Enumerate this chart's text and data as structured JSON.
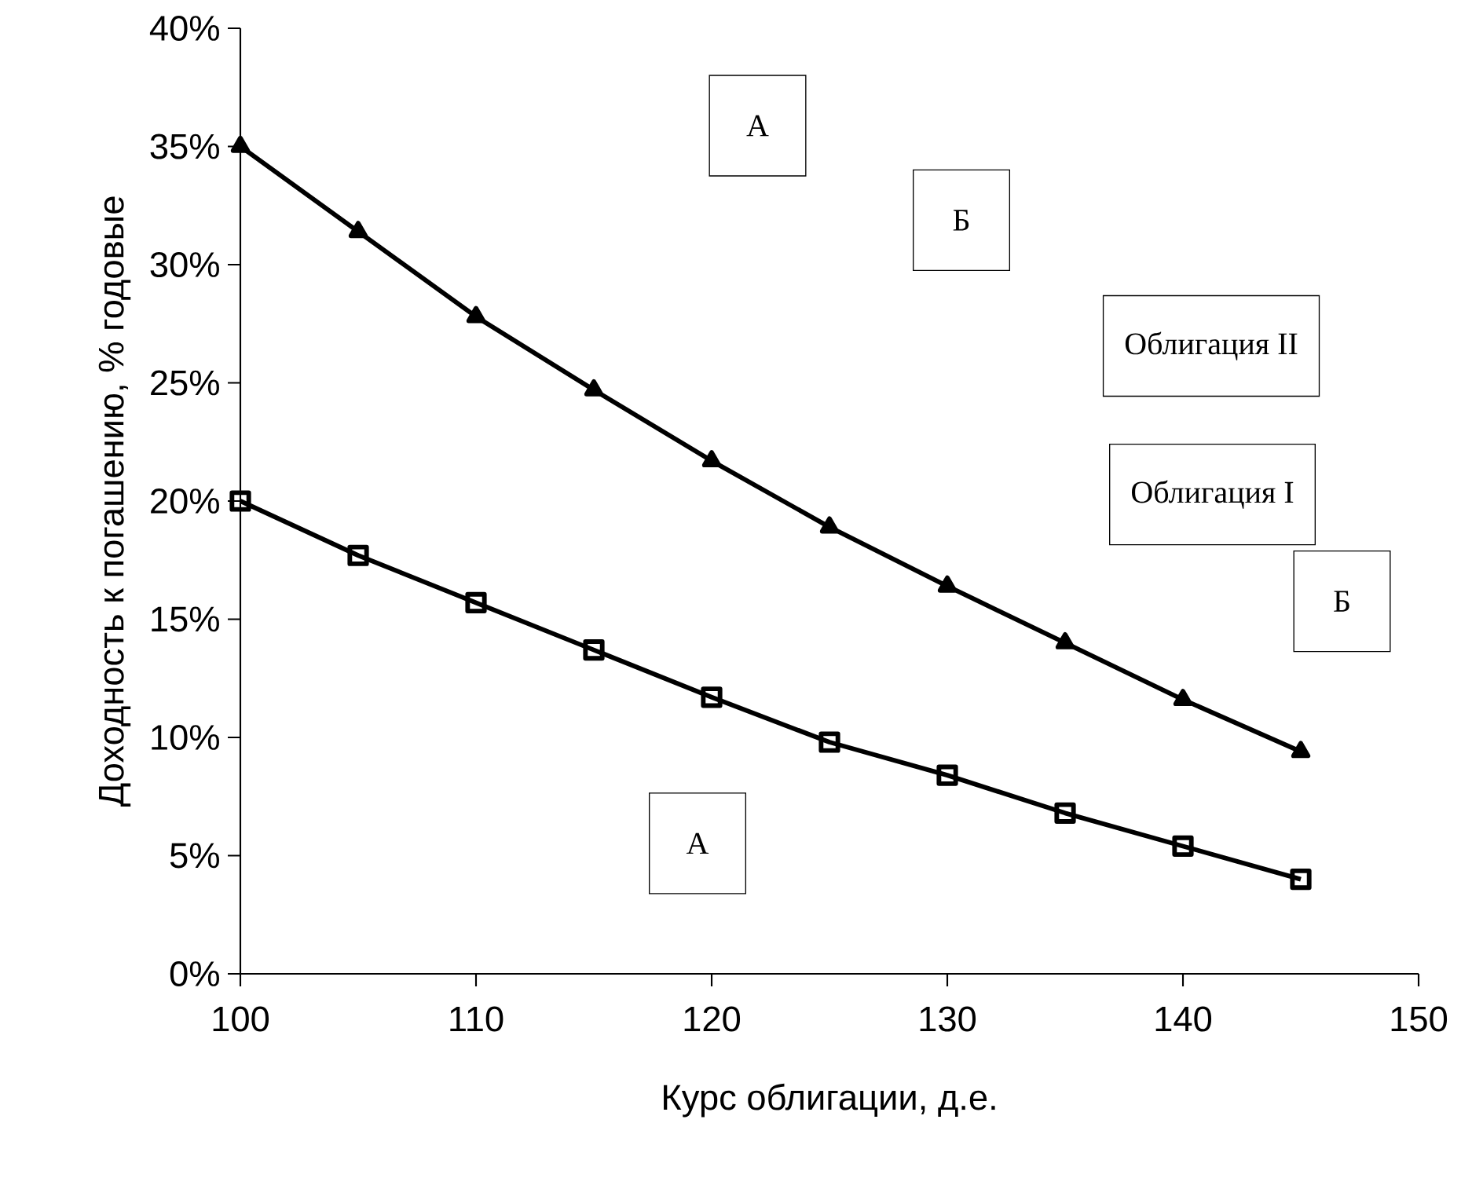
{
  "chart_data": {
    "type": "line",
    "xlabel": "Курс облигации, д.е.",
    "ylabel": "Доходность к погашению, % годовые",
    "x": [
      100,
      105,
      110,
      115,
      120,
      125,
      130,
      135,
      140,
      145
    ],
    "series": [
      {
        "color": "#000000",
        "marker": "square",
        "values": [
          20.0,
          17.7,
          15.7,
          13.7,
          11.7,
          9.8,
          8.4,
          6.8,
          5.4,
          4.0
        ]
      },
      {
        "color": "#000000",
        "marker": "triangle",
        "values": [
          35.0,
          31.4,
          27.8,
          24.7,
          21.7,
          18.9,
          16.4,
          14.0,
          11.6,
          9.4
        ]
      }
    ],
    "annotations": [
      "А",
      "Б",
      "Облигация II",
      "Облигация I",
      "Б",
      "А"
    ],
    "xlim": [
      100,
      150
    ],
    "xticks": [
      100,
      110,
      120,
      130,
      140,
      150
    ],
    "ylim": [
      0,
      40
    ],
    "yticks": [
      {
        "value": 0,
        "label": "0%"
      },
      {
        "value": 5,
        "label": "5%"
      },
      {
        "value": 10,
        "label": "10%"
      },
      {
        "value": 15,
        "label": "15%"
      },
      {
        "value": 20,
        "label": "20%"
      },
      {
        "value": 25,
        "label": "25%"
      },
      {
        "value": 30,
        "label": "30%"
      },
      {
        "value": 35,
        "label": "35%"
      },
      {
        "value": 40,
        "label": "40%"
      }
    ],
    "grid": false,
    "line_style": "solid"
  }
}
